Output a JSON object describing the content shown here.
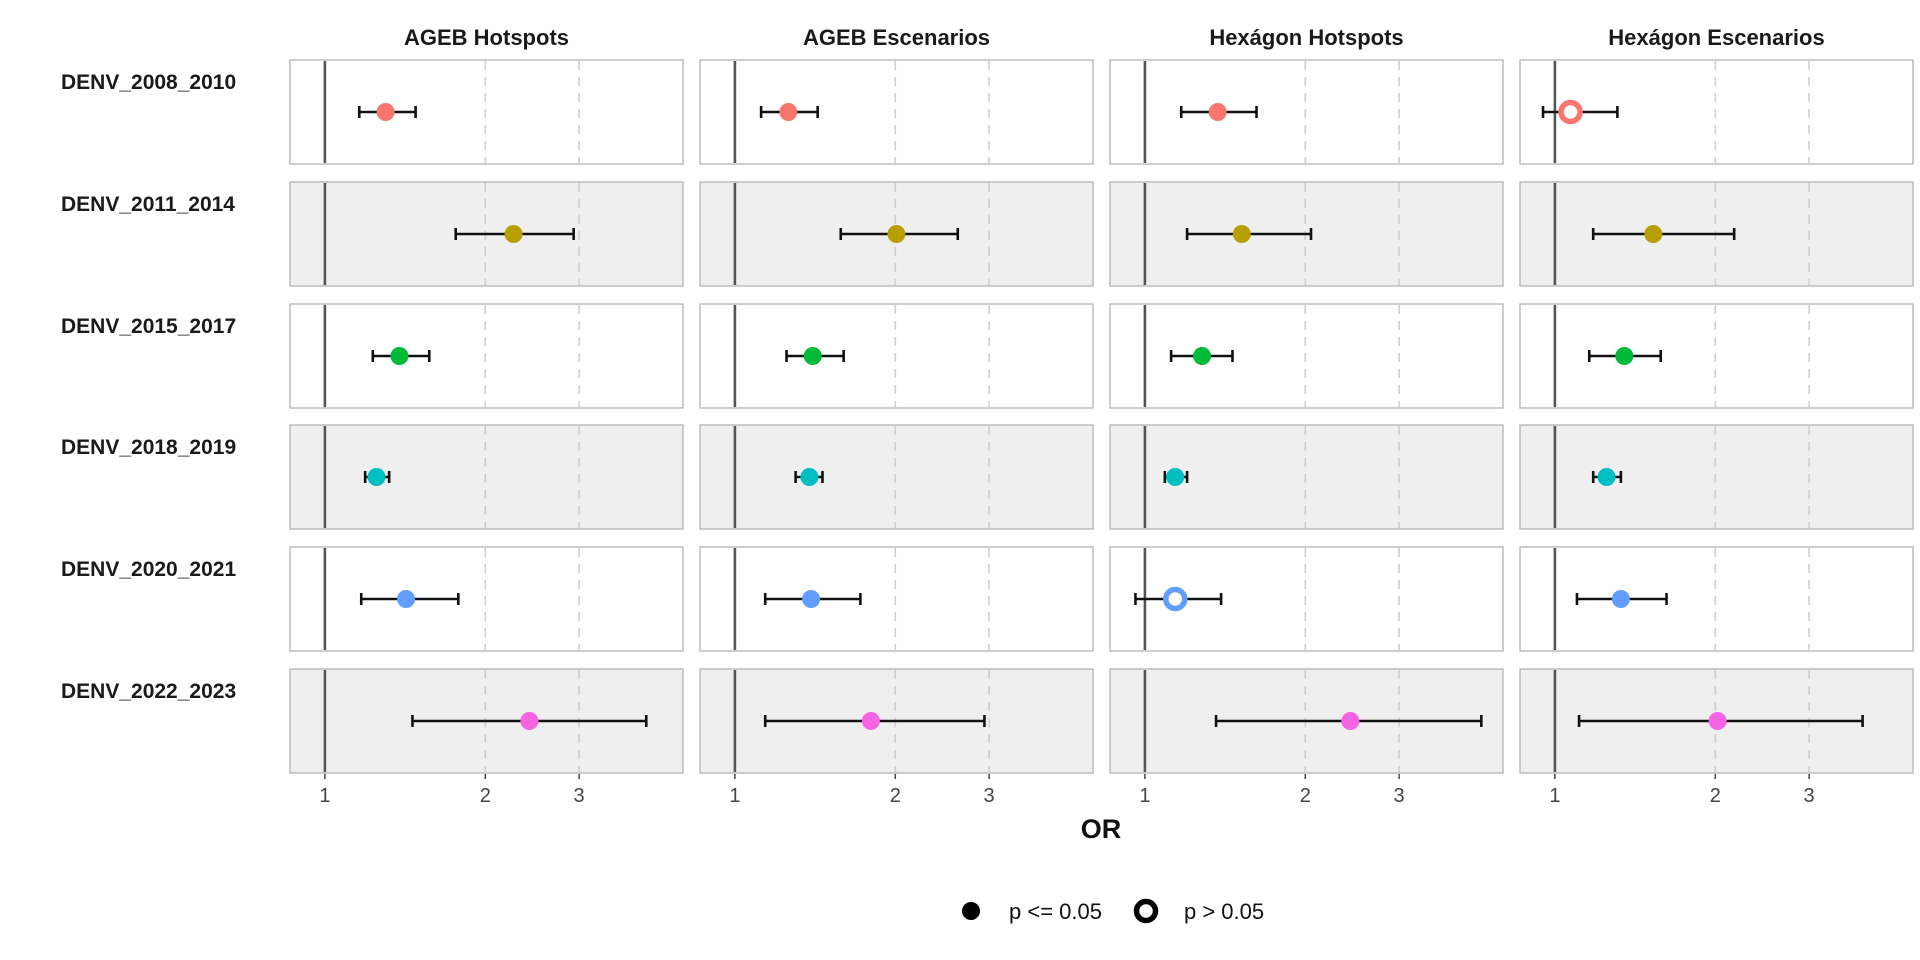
{
  "chart_data": {
    "type": "scatter",
    "subtype": "forest-plot-faceted",
    "xlabel": "OR",
    "x_scale": "log",
    "xlim": [
      0.86,
      4.7
    ],
    "x_ticks": [
      1,
      2,
      3
    ],
    "x_tick_labels": [
      "1",
      "2",
      "3"
    ],
    "reference_line": 1,
    "grid": "dashed vertical at 2 and 3",
    "columns": [
      "AGEB Hotspots",
      "AGEB Escenarios",
      "Hexágon Hotspots",
      "Hexágon Escenarios"
    ],
    "rows": [
      "DENV_2008_2010",
      "DENV_2011_2014",
      "DENV_2015_2017",
      "DENV_2018_2019",
      "DENV_2020_2021",
      "DENV_2022_2023"
    ],
    "row_colors": [
      "#F8766D",
      "#B79F00",
      "#00BA38",
      "#00BFC4",
      "#619CFF",
      "#F564E3"
    ],
    "row_backgrounds": [
      "#ffffff",
      "#efefef",
      "#ffffff",
      "#efefef",
      "#ffffff",
      "#efefef"
    ],
    "points": [
      {
        "row": "DENV_2008_2010",
        "col": "AGEB Hotspots",
        "or": 1.3,
        "lo": 1.16,
        "hi": 1.48,
        "significant": true
      },
      {
        "row": "DENV_2008_2010",
        "col": "AGEB Escenarios",
        "or": 1.26,
        "lo": 1.12,
        "hi": 1.43,
        "significant": true
      },
      {
        "row": "DENV_2008_2010",
        "col": "Hexágon Hotspots",
        "or": 1.37,
        "lo": 1.17,
        "hi": 1.62,
        "significant": true
      },
      {
        "row": "DENV_2008_2010",
        "col": "Hexágon Escenarios",
        "or": 1.07,
        "lo": 0.95,
        "hi": 1.31,
        "significant": false
      },
      {
        "row": "DENV_2011_2014",
        "col": "AGEB Hotspots",
        "or": 2.26,
        "lo": 1.76,
        "hi": 2.93,
        "significant": true
      },
      {
        "row": "DENV_2011_2014",
        "col": "AGEB Escenarios",
        "or": 2.01,
        "lo": 1.58,
        "hi": 2.62,
        "significant": true
      },
      {
        "row": "DENV_2011_2014",
        "col": "Hexágon Hotspots",
        "or": 1.52,
        "lo": 1.2,
        "hi": 2.05,
        "significant": true
      },
      {
        "row": "DENV_2011_2014",
        "col": "Hexágon Escenarios",
        "or": 1.53,
        "lo": 1.18,
        "hi": 2.17,
        "significant": true
      },
      {
        "row": "DENV_2015_2017",
        "col": "AGEB Hotspots",
        "or": 1.38,
        "lo": 1.23,
        "hi": 1.57,
        "significant": true
      },
      {
        "row": "DENV_2015_2017",
        "col": "AGEB Escenarios",
        "or": 1.4,
        "lo": 1.25,
        "hi": 1.6,
        "significant": true
      },
      {
        "row": "DENV_2015_2017",
        "col": "Hexágon Hotspots",
        "or": 1.28,
        "lo": 1.12,
        "hi": 1.46,
        "significant": true
      },
      {
        "row": "DENV_2015_2017",
        "col": "Hexágon Escenarios",
        "or": 1.35,
        "lo": 1.16,
        "hi": 1.58,
        "significant": true
      },
      {
        "row": "DENV_2018_2019",
        "col": "AGEB Hotspots",
        "or": 1.25,
        "lo": 1.19,
        "hi": 1.32,
        "significant": true
      },
      {
        "row": "DENV_2018_2019",
        "col": "AGEB Escenarios",
        "or": 1.38,
        "lo": 1.3,
        "hi": 1.46,
        "significant": true
      },
      {
        "row": "DENV_2018_2019",
        "col": "Hexágon Hotspots",
        "or": 1.14,
        "lo": 1.09,
        "hi": 1.2,
        "significant": true
      },
      {
        "row": "DENV_2018_2019",
        "col": "Hexágon Escenarios",
        "or": 1.25,
        "lo": 1.18,
        "hi": 1.33,
        "significant": true
      },
      {
        "row": "DENV_2020_2021",
        "col": "AGEB Hotspots",
        "or": 1.42,
        "lo": 1.17,
        "hi": 1.78,
        "significant": true
      },
      {
        "row": "DENV_2020_2021",
        "col": "AGEB Escenarios",
        "or": 1.39,
        "lo": 1.14,
        "hi": 1.72,
        "significant": true
      },
      {
        "row": "DENV_2020_2021",
        "col": "Hexágon Hotspots",
        "or": 1.14,
        "lo": 0.96,
        "hi": 1.39,
        "significant": false
      },
      {
        "row": "DENV_2020_2021",
        "col": "Hexágon Escenarios",
        "or": 1.33,
        "lo": 1.1,
        "hi": 1.62,
        "significant": true
      },
      {
        "row": "DENV_2022_2023",
        "col": "AGEB Hotspots",
        "or": 2.42,
        "lo": 1.46,
        "hi": 4.01,
        "significant": true
      },
      {
        "row": "DENV_2022_2023",
        "col": "AGEB Escenarios",
        "or": 1.8,
        "lo": 1.14,
        "hi": 2.94,
        "significant": true
      },
      {
        "row": "DENV_2022_2023",
        "col": "Hexágon Hotspots",
        "or": 2.43,
        "lo": 1.36,
        "hi": 4.28,
        "significant": true
      },
      {
        "row": "DENV_2022_2023",
        "col": "Hexágon Escenarios",
        "or": 2.02,
        "lo": 1.11,
        "hi": 3.78,
        "significant": true
      }
    ],
    "legend": {
      "position": "bottom",
      "items": [
        {
          "label": "p <= 0.05",
          "shape": "filled-circle"
        },
        {
          "label": "p > 0.05",
          "shape": "hollow-circle"
        }
      ]
    }
  }
}
